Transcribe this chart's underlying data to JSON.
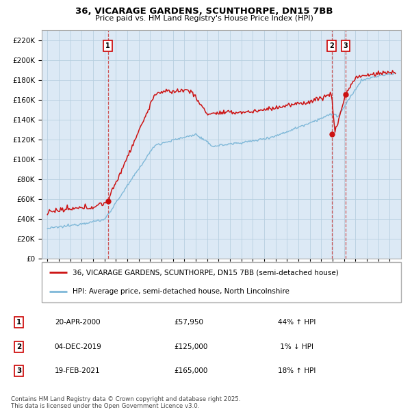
{
  "title": "36, VICARAGE GARDENS, SCUNTHORPE, DN15 7BB",
  "subtitle": "Price paid vs. HM Land Registry's House Price Index (HPI)",
  "legend_line1": "36, VICARAGE GARDENS, SCUNTHORPE, DN15 7BB (semi-detached house)",
  "legend_line2": "HPI: Average price, semi-detached house, North Lincolnshire",
  "footnote": "Contains HM Land Registry data © Crown copyright and database right 2025.\nThis data is licensed under the Open Government Licence v3.0.",
  "transactions": [
    {
      "label": "1",
      "date": "20-APR-2000",
      "price": 57950,
      "pct": "44% ↑ HPI",
      "x": 2000.3
    },
    {
      "label": "2",
      "date": "04-DEC-2019",
      "price": 125000,
      "pct": "1% ↓ HPI",
      "x": 2019.92
    },
    {
      "label": "3",
      "date": "19-FEB-2021",
      "price": 165000,
      "pct": "18% ↑ HPI",
      "x": 2021.13
    }
  ],
  "hpi_color": "#7fb8d8",
  "price_color": "#cc1111",
  "dashed_color": "#cc4444",
  "background_color": "#ffffff",
  "chart_bg": "#dce9f5",
  "grid_color": "#b8cfe0",
  "ylim": [
    0,
    230000
  ],
  "xlim": [
    1994.5,
    2026.0
  ],
  "yticks": [
    0,
    20000,
    40000,
    60000,
    80000,
    100000,
    120000,
    140000,
    160000,
    180000,
    200000,
    220000
  ]
}
